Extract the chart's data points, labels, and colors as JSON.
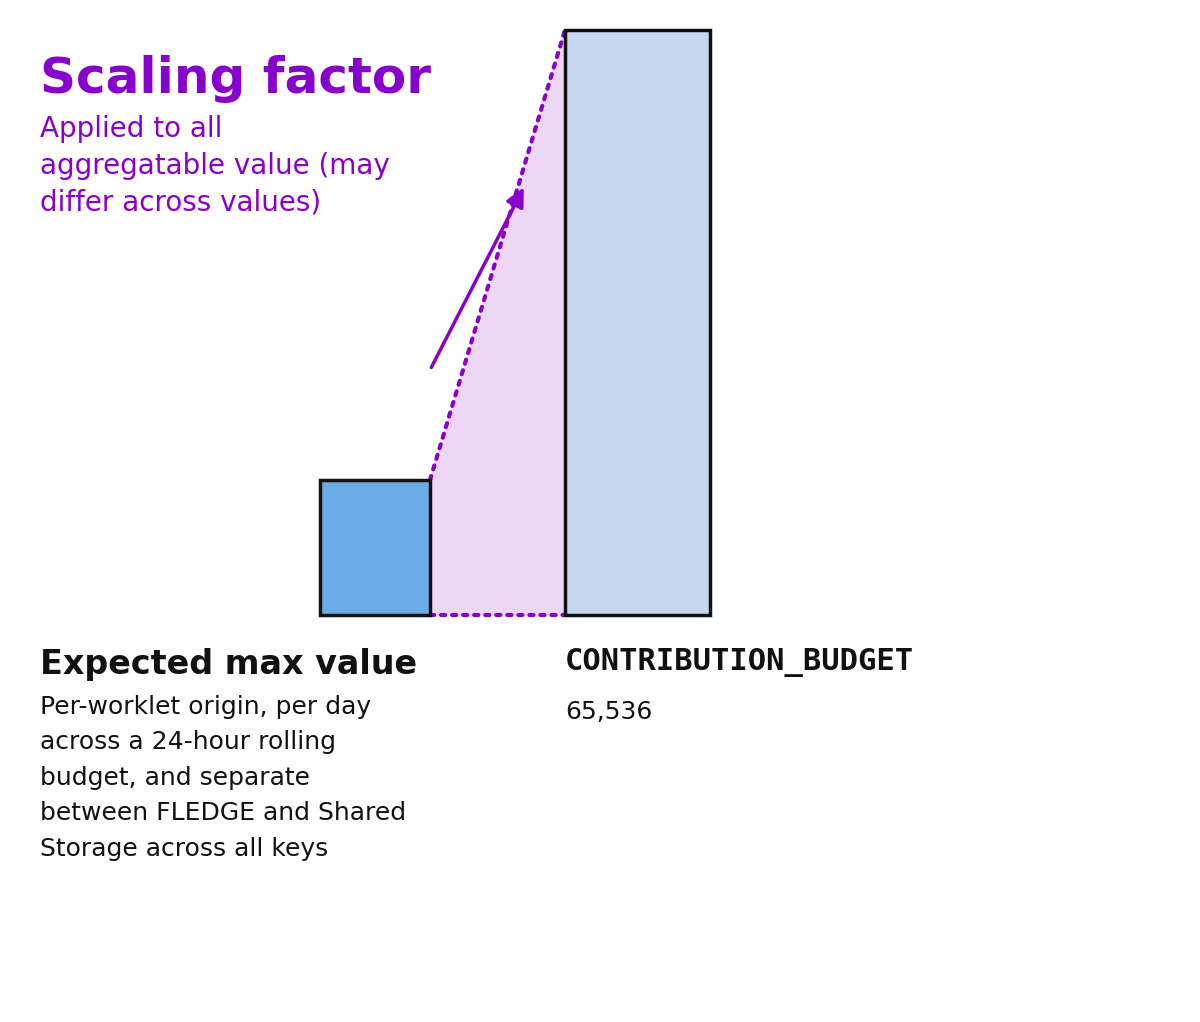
{
  "background_color": "#ffffff",
  "bar1_color": "#6aabe8",
  "bar1_edge_color": "#111111",
  "bar2_color": "#c5d8f0",
  "bar2_edge_color": "#111111",
  "triangle_color": "#ddb8f0",
  "triangle_alpha": 0.55,
  "dotted_line_color": "#8800cc",
  "title": "Scaling factor",
  "title_color": "#8800cc",
  "title_fontsize": 36,
  "subtitle": "Applied to all\naggregatable value (may\ndiffer across values)",
  "subtitle_color": "#8800cc",
  "subtitle_fontsize": 20,
  "label1": "Expected max value",
  "label1_fontsize": 24,
  "label1_color": "#111111",
  "desc1": "Per-worklet origin, per day\nacross a 24-hour rolling\nbudget, and separate\nbetween FLEDGE and Shared\nStorage across all keys",
  "desc1_fontsize": 18,
  "desc1_color": "#111111",
  "label2": "CONTRIBUTION_BUDGET",
  "label2_fontsize": 22,
  "label2_color": "#111111",
  "desc2": "65,536",
  "desc2_fontsize": 18,
  "desc2_color": "#111111",
  "arrow_color": "#8800cc"
}
